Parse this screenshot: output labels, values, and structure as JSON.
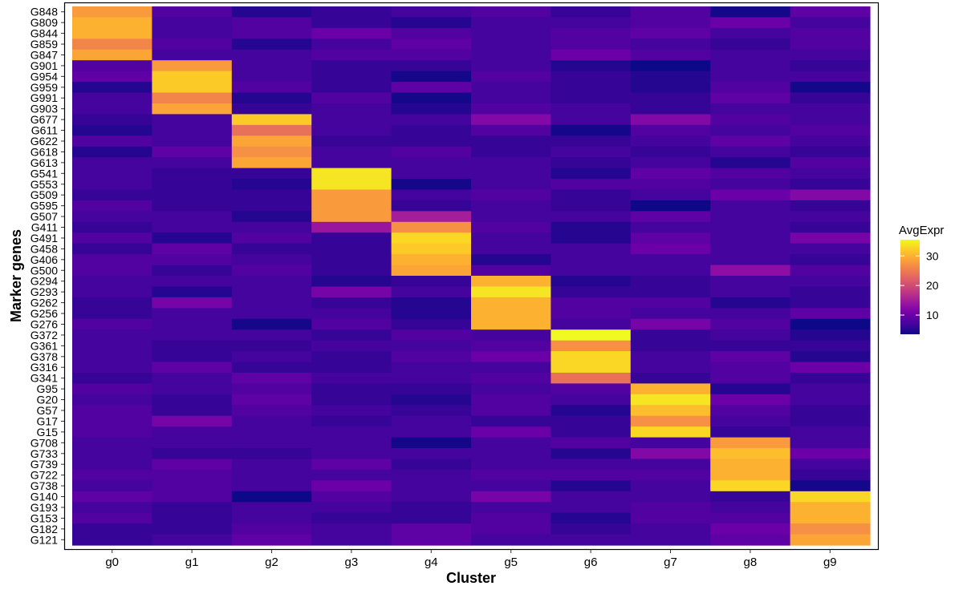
{
  "chart_data": {
    "type": "heatmap",
    "title": "",
    "xlabel": "Cluster",
    "ylabel": "Marker genes",
    "x": [
      "g0",
      "g1",
      "g2",
      "g3",
      "g4",
      "g5",
      "g6",
      "g7",
      "g8",
      "g9"
    ],
    "y": [
      "G848",
      "G809",
      "G844",
      "G859",
      "G847",
      "G901",
      "G954",
      "G959",
      "G991",
      "G903",
      "G677",
      "G611",
      "G622",
      "G618",
      "G613",
      "G541",
      "G553",
      "G509",
      "G595",
      "G507",
      "G411",
      "G491",
      "G458",
      "G406",
      "G500",
      "G294",
      "G293",
      "G262",
      "G256",
      "G276",
      "G372",
      "G361",
      "G378",
      "G316",
      "G341",
      "G95",
      "G20",
      "G57",
      "G17",
      "G15",
      "G708",
      "G733",
      "G739",
      "G722",
      "G738",
      "G140",
      "G193",
      "G153",
      "G182",
      "G121"
    ],
    "values": [
      [
        28,
        8,
        5,
        6,
        7,
        8,
        6,
        8,
        4,
        9
      ],
      [
        30,
        7,
        8,
        6,
        5,
        7,
        7,
        8,
        10,
        7
      ],
      [
        30,
        7,
        8,
        10,
        8,
        7,
        8,
        9,
        7,
        8
      ],
      [
        26,
        8,
        5,
        7,
        9,
        7,
        8,
        7,
        6,
        8
      ],
      [
        29,
        7,
        7,
        8,
        8,
        7,
        10,
        8,
        7,
        7
      ],
      [
        8,
        28,
        7,
        6,
        6,
        7,
        5,
        3,
        7,
        6
      ],
      [
        9,
        32,
        7,
        6,
        4,
        8,
        6,
        5,
        7,
        7
      ],
      [
        5,
        32,
        8,
        6,
        9,
        7,
        6,
        5,
        8,
        4
      ],
      [
        7,
        26,
        5,
        8,
        4,
        7,
        6,
        6,
        9,
        6
      ],
      [
        7,
        29,
        6,
        7,
        5,
        8,
        7,
        6,
        7,
        7
      ],
      [
        6,
        7,
        32,
        7,
        7,
        12,
        7,
        12,
        8,
        7
      ],
      [
        5,
        7,
        24,
        7,
        6,
        8,
        4,
        8,
        7,
        8
      ],
      [
        8,
        7,
        29,
        6,
        6,
        6,
        6,
        7,
        9,
        7
      ],
      [
        5,
        9,
        27,
        7,
        8,
        6,
        7,
        6,
        7,
        6
      ],
      [
        7,
        7,
        29,
        7,
        7,
        7,
        6,
        7,
        5,
        8
      ],
      [
        7,
        6,
        6,
        34,
        7,
        7,
        5,
        9,
        8,
        7
      ],
      [
        7,
        6,
        5,
        34,
        4,
        7,
        8,
        8,
        7,
        6
      ],
      [
        6,
        6,
        6,
        28,
        7,
        8,
        6,
        7,
        10,
        12
      ],
      [
        8,
        6,
        6,
        28,
        6,
        7,
        6,
        3,
        7,
        6
      ],
      [
        7,
        7,
        5,
        28,
        15,
        7,
        7,
        9,
        7,
        7
      ],
      [
        6,
        7,
        7,
        14,
        27,
        8,
        5,
        7,
        7,
        6
      ],
      [
        8,
        5,
        8,
        6,
        33,
        7,
        5,
        9,
        7,
        11
      ],
      [
        6,
        9,
        6,
        6,
        32,
        7,
        7,
        10,
        7,
        7
      ],
      [
        8,
        8,
        7,
        6,
        30,
        5,
        7,
        7,
        7,
        6
      ],
      [
        8,
        6,
        8,
        6,
        29,
        8,
        7,
        7,
        13,
        8
      ],
      [
        7,
        7,
        7,
        5,
        6,
        30,
        5,
        6,
        7,
        7
      ],
      [
        7,
        5,
        7,
        11,
        7,
        34,
        6,
        6,
        7,
        6
      ],
      [
        6,
        11,
        7,
        6,
        5,
        30,
        8,
        8,
        5,
        6
      ],
      [
        6,
        7,
        7,
        7,
        5,
        30,
        8,
        7,
        7,
        9
      ],
      [
        8,
        7,
        4,
        8,
        6,
        30,
        7,
        11,
        8,
        3
      ],
      [
        7,
        7,
        7,
        6,
        8,
        7,
        36,
        6,
        7,
        5
      ],
      [
        7,
        6,
        6,
        7,
        7,
        8,
        27,
        6,
        6,
        6
      ],
      [
        7,
        6,
        7,
        6,
        8,
        10,
        33,
        7,
        9,
        5
      ],
      [
        7,
        9,
        6,
        6,
        7,
        7,
        33,
        7,
        8,
        10
      ],
      [
        6,
        7,
        9,
        7,
        7,
        8,
        24,
        6,
        8,
        6
      ],
      [
        8,
        7,
        8,
        6,
        6,
        7,
        8,
        30,
        5,
        7
      ],
      [
        7,
        6,
        9,
        6,
        5,
        8,
        7,
        34,
        10,
        7
      ],
      [
        8,
        6,
        8,
        7,
        6,
        8,
        5,
        31,
        8,
        6
      ],
      [
        8,
        11,
        7,
        6,
        7,
        6,
        6,
        27,
        7,
        6
      ],
      [
        8,
        7,
        7,
        7,
        7,
        10,
        6,
        33,
        6,
        7
      ],
      [
        7,
        7,
        7,
        7,
        4,
        7,
        8,
        7,
        28,
        7
      ],
      [
        7,
        6,
        6,
        7,
        7,
        7,
        5,
        12,
        31,
        10
      ],
      [
        7,
        9,
        7,
        9,
        6,
        7,
        7,
        7,
        30,
        7
      ],
      [
        8,
        8,
        7,
        7,
        7,
        8,
        8,
        8,
        30,
        6
      ],
      [
        7,
        8,
        7,
        10,
        7,
        7,
        5,
        7,
        33,
        4
      ],
      [
        9,
        8,
        3,
        8,
        7,
        11,
        7,
        7,
        6,
        33
      ],
      [
        7,
        6,
        7,
        7,
        6,
        7,
        7,
        8,
        7,
        30
      ],
      [
        8,
        6,
        7,
        6,
        6,
        8,
        5,
        8,
        8,
        30
      ],
      [
        6,
        6,
        8,
        7,
        9,
        8,
        6,
        7,
        10,
        27
      ],
      [
        6,
        7,
        9,
        7,
        9,
        7,
        7,
        7,
        9,
        29
      ]
    ],
    "colorscale": "plasma",
    "color_range": [
      3.5,
      35.5
    ],
    "legend": {
      "title": "AvgExpr",
      "ticks": [
        10,
        20,
        30
      ],
      "placement": "right"
    },
    "grid": false
  }
}
